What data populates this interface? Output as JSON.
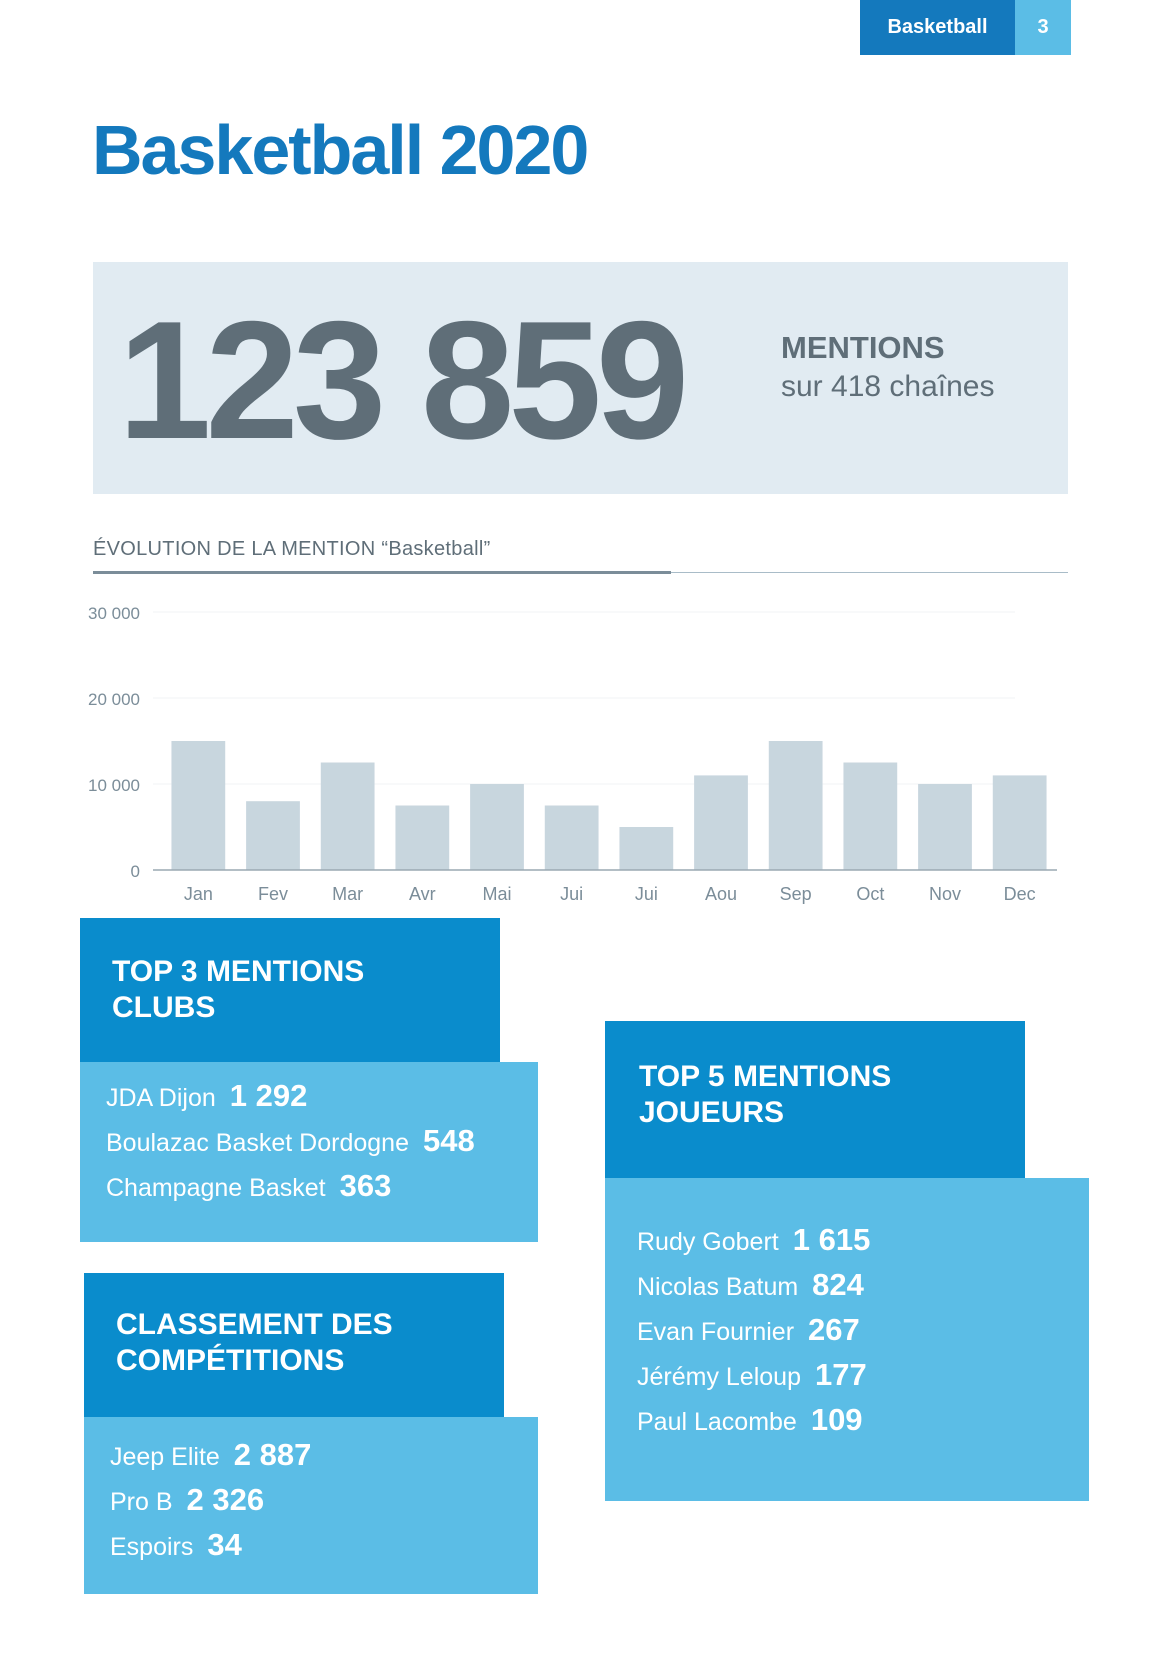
{
  "header": {
    "section": "Basketball",
    "page_number": "3"
  },
  "title": "Basketball 2020",
  "summary": {
    "total": "123 859",
    "label": "MENTIONS",
    "sub": "sur 418 chaînes"
  },
  "colors": {
    "primary": "#1479bd",
    "header_box": "#0a8ccc",
    "body_box": "#5bbde6",
    "bar": "#c8d6de",
    "stat_bg": "#e1ebf2",
    "text_gray": "#5f6e78"
  },
  "chart_title": "ÉVOLUTION DE LA MENTION “Basketball”",
  "chart_data": {
    "type": "bar",
    "categories": [
      "Jan",
      "Fev",
      "Mar",
      "Avr",
      "Mai",
      "Jui",
      "Jui",
      "Aou",
      "Sep",
      "Oct",
      "Nov",
      "Dec"
    ],
    "values": [
      15000,
      8000,
      12500,
      7500,
      10000,
      7500,
      5000,
      11000,
      15000,
      12500,
      10000,
      11000
    ],
    "yticks": [
      "0",
      "10 000",
      "20 000",
      "30 000"
    ],
    "ylim": [
      0,
      30000
    ],
    "grid": true
  },
  "clubs": {
    "title": "TOP 3 MENTIONS CLUBS",
    "items": [
      {
        "name": "JDA Dijon",
        "value": "1 292"
      },
      {
        "name": "Boulazac Basket Dordogne",
        "value": "548"
      },
      {
        "name": "Champagne Basket",
        "value": "363"
      }
    ]
  },
  "competitions": {
    "title": "CLASSEMENT DES COMPÉTITIONS",
    "items": [
      {
        "name": "Jeep Elite",
        "value": "2 887"
      },
      {
        "name": "Pro B",
        "value": "2 326"
      },
      {
        "name": "Espoirs",
        "value": "34"
      }
    ]
  },
  "players": {
    "title": "TOP 5 MENTIONS JOUEURS",
    "items": [
      {
        "name": "Rudy Gobert",
        "value": "1 615"
      },
      {
        "name": "Nicolas Batum",
        "value": "824"
      },
      {
        "name": "Evan Fournier",
        "value": "267"
      },
      {
        "name": "Jérémy Leloup",
        "value": "177"
      },
      {
        "name": "Paul Lacombe",
        "value": "109"
      }
    ]
  }
}
